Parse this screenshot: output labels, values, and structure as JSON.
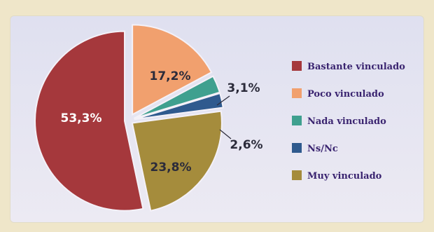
{
  "chart_data": {
    "type": "pie",
    "title": "",
    "slices": [
      {
        "name": "Bastante vinculado",
        "value": 53.3,
        "label": "53,3%",
        "color": "#a5383c"
      },
      {
        "name": "Poco vinculado",
        "value": 17.2,
        "label": "17,2%",
        "color": "#f1a06e"
      },
      {
        "name": "Nada vinculado",
        "value": 3.1,
        "label": "3,1%",
        "color": "#3fa08f"
      },
      {
        "name": "Ns/Nc",
        "value": 2.6,
        "label": "2,6%",
        "color": "#2f5a8e"
      },
      {
        "name": "Muy vinculado",
        "value": 23.8,
        "label": "23,8%",
        "color": "#a58c3c"
      }
    ],
    "legend": {
      "position": "right",
      "items": [
        "Bastante vinculado",
        "Poco vinculado",
        "Nada vinculado",
        "Ns/Nc",
        "Muy vinculado"
      ]
    },
    "exploded": true
  },
  "colors": {
    "background": "#efe6c9",
    "panel": "#e4e3f1",
    "legend_text": "#3a2470",
    "label_dark": "#2b2b3a",
    "label_light": "#ffffff"
  }
}
